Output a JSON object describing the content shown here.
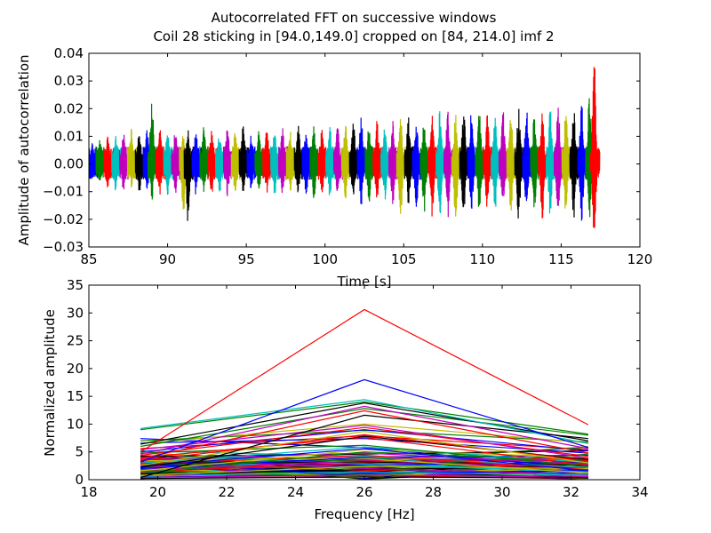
{
  "figure": {
    "title_line1": "Autocorrelated FFT on successive windows",
    "title_line2": "Coil 28 sticking in [94.0,149.0] cropped on [84, 214.0] imf 2"
  },
  "palette": [
    "#0000ff",
    "#008000",
    "#ff0000",
    "#00bfbf",
    "#bf00bf",
    "#bfbf00",
    "#000000"
  ],
  "chart_data": [
    {
      "type": "line",
      "title": "Autocorrelated FFT on successive windows",
      "subtitle": "Coil 28 sticking in [94.0,149.0] cropped on [84, 214.0] imf 2",
      "xlabel": "Time [s]",
      "ylabel": "Amplitude of autocorrelation",
      "xlim": [
        85,
        120
      ],
      "ylim": [
        -0.03,
        0.04
      ],
      "xticks": [
        85,
        90,
        95,
        100,
        105,
        110,
        115,
        120
      ],
      "yticks": [
        -0.03,
        -0.02,
        -0.01,
        0.0,
        0.01,
        0.02,
        0.03,
        0.04
      ],
      "xtick_labels": [
        "85",
        "90",
        "95",
        "100",
        "105",
        "110",
        "115",
        "120"
      ],
      "ytick_labels": [
        "−0.03",
        "−0.02",
        "−0.01",
        "0.00",
        "0.01",
        "0.02",
        "0.03",
        "0.04"
      ],
      "grid": false,
      "legend": "none",
      "windows": {
        "t_start": 85.0,
        "t_end": 117.2,
        "step": 0.5,
        "color_cycle": [
          "#0000ff",
          "#008000",
          "#ff0000",
          "#00bfbf",
          "#bf00bf",
          "#bfbf00",
          "#000000"
        ],
        "peaks": [
          [
            85.2,
            0.008,
            -0.006
          ],
          [
            85.7,
            0.009,
            -0.008
          ],
          [
            86.2,
            0.01,
            -0.009
          ],
          [
            86.7,
            0.011,
            -0.01
          ],
          [
            87.2,
            0.012,
            -0.01
          ],
          [
            87.7,
            0.013,
            -0.009
          ],
          [
            88.2,
            0.012,
            -0.011
          ],
          [
            88.7,
            0.013,
            -0.01
          ],
          [
            89.0,
            0.025,
            -0.015
          ],
          [
            89.5,
            0.014,
            -0.012
          ],
          [
            90.0,
            0.013,
            -0.012
          ],
          [
            90.5,
            0.014,
            -0.011
          ],
          [
            91.0,
            0.012,
            -0.019
          ],
          [
            91.3,
            0.013,
            -0.022
          ],
          [
            91.8,
            0.013,
            -0.012
          ],
          [
            92.3,
            0.014,
            -0.011
          ],
          [
            92.8,
            0.013,
            -0.012
          ],
          [
            93.3,
            0.012,
            -0.011
          ],
          [
            93.8,
            0.014,
            -0.012
          ],
          [
            94.3,
            0.013,
            -0.011
          ],
          [
            94.8,
            0.014,
            -0.012
          ],
          [
            95.3,
            0.013,
            -0.011
          ],
          [
            95.8,
            0.012,
            -0.01
          ],
          [
            96.3,
            0.013,
            -0.011
          ],
          [
            96.8,
            0.012,
            -0.012
          ],
          [
            97.3,
            0.013,
            -0.011
          ],
          [
            97.8,
            0.013,
            -0.012
          ],
          [
            98.3,
            0.014,
            -0.011
          ],
          [
            98.8,
            0.013,
            -0.012
          ],
          [
            99.3,
            0.014,
            -0.013
          ],
          [
            99.8,
            0.014,
            -0.012
          ],
          [
            100.3,
            0.015,
            -0.013
          ],
          [
            100.8,
            0.014,
            -0.012
          ],
          [
            101.3,
            0.015,
            -0.013
          ],
          [
            101.8,
            0.016,
            -0.014
          ],
          [
            102.3,
            0.018,
            -0.016
          ],
          [
            102.8,
            0.015,
            -0.014
          ],
          [
            103.3,
            0.016,
            -0.015
          ],
          [
            103.8,
            0.015,
            -0.014
          ],
          [
            104.3,
            0.016,
            -0.015
          ],
          [
            104.8,
            0.018,
            -0.021
          ],
          [
            105.3,
            0.017,
            -0.016
          ],
          [
            105.8,
            0.016,
            -0.017
          ],
          [
            106.3,
            0.017,
            -0.018
          ],
          [
            106.8,
            0.018,
            -0.02
          ],
          [
            107.3,
            0.021,
            -0.022
          ],
          [
            107.8,
            0.02,
            -0.021
          ],
          [
            108.3,
            0.019,
            -0.022
          ],
          [
            108.8,
            0.021,
            -0.02
          ],
          [
            109.3,
            0.02,
            -0.019
          ],
          [
            109.8,
            0.019,
            -0.018
          ],
          [
            110.3,
            0.018,
            -0.019
          ],
          [
            110.8,
            0.019,
            -0.018
          ],
          [
            111.3,
            0.02,
            -0.017
          ],
          [
            111.8,
            0.019,
            -0.018
          ],
          [
            112.3,
            0.021,
            -0.022
          ],
          [
            112.8,
            0.02,
            -0.019
          ],
          [
            113.3,
            0.019,
            -0.018
          ],
          [
            113.8,
            0.02,
            -0.02
          ],
          [
            114.3,
            0.021,
            -0.019
          ],
          [
            114.8,
            0.023,
            -0.022
          ],
          [
            115.3,
            0.02,
            -0.019
          ],
          [
            115.8,
            0.021,
            -0.02
          ],
          [
            116.3,
            0.022,
            -0.021
          ],
          [
            116.8,
            0.026,
            -0.022
          ],
          [
            117.1,
            0.037,
            -0.027
          ]
        ]
      }
    },
    {
      "type": "line",
      "title": "",
      "xlabel": "Frequency [Hz]",
      "ylabel": "Normalized amplitude",
      "xlim": [
        18,
        34
      ],
      "ylim": [
        0,
        35
      ],
      "xticks": [
        18,
        20,
        22,
        24,
        26,
        28,
        30,
        32,
        34
      ],
      "yticks": [
        0,
        5,
        10,
        15,
        20,
        25,
        30,
        35
      ],
      "xtick_labels": [
        "18",
        "20",
        "22",
        "24",
        "26",
        "28",
        "30",
        "32",
        "34"
      ],
      "ytick_labels": [
        "0",
        "5",
        "10",
        "15",
        "20",
        "25",
        "30",
        "35"
      ],
      "grid": false,
      "legend": "none",
      "x": [
        19.5,
        26.0,
        32.5
      ],
      "series": [
        {
          "color": "#ff0000",
          "values": [
            5.0,
            30.6,
            9.9
          ]
        },
        {
          "color": "#0000ff",
          "values": [
            3.2,
            18.0,
            5.8
          ]
        },
        {
          "color": "#00bfbf",
          "values": [
            9.2,
            14.4,
            6.5
          ]
        },
        {
          "color": "#008000",
          "values": [
            9.0,
            14.0,
            8.2
          ]
        },
        {
          "color": "#000000",
          "values": [
            6.4,
            13.8,
            7.0
          ]
        },
        {
          "color": "#bf00bf",
          "values": [
            4.6,
            13.2,
            5.6
          ]
        },
        {
          "color": "#008000",
          "values": [
            6.0,
            12.8,
            8.0
          ]
        },
        {
          "color": "#ff0000",
          "values": [
            3.8,
            12.4,
            4.8
          ]
        },
        {
          "color": "#000000",
          "values": [
            0.4,
            11.6,
            7.4
          ]
        },
        {
          "color": "#bfbf00",
          "values": [
            6.5,
            10.0,
            6.6
          ]
        },
        {
          "color": "#bf00bf",
          "values": [
            5.4,
            9.8,
            3.9
          ]
        },
        {
          "color": "#ff0000",
          "values": [
            4.4,
            9.4,
            4.2
          ]
        },
        {
          "color": "#0000ff",
          "values": [
            5.0,
            9.0,
            5.2
          ]
        },
        {
          "color": "#bfbf00",
          "values": [
            2.6,
            8.7,
            3.0
          ]
        },
        {
          "color": "#ff0000",
          "values": [
            3.4,
            8.1,
            3.4
          ]
        },
        {
          "color": "#000000",
          "values": [
            2.2,
            7.8,
            3.6
          ]
        },
        {
          "color": "#ff0000",
          "values": [
            4.0,
            7.6,
            2.6
          ]
        },
        {
          "color": "#0000ff",
          "values": [
            6.6,
            7.4,
            4.8
          ]
        },
        {
          "color": "#008000",
          "values": [
            4.8,
            6.2,
            2.4
          ]
        },
        {
          "color": "#00bfbf",
          "values": [
            3.0,
            5.9,
            3.1
          ]
        },
        {
          "color": "#0000ff",
          "values": [
            2.4,
            5.6,
            1.6
          ]
        },
        {
          "color": "#bfbf00",
          "values": [
            1.6,
            5.4,
            4.0
          ]
        },
        {
          "color": "#008000",
          "values": [
            1.2,
            5.0,
            3.3
          ]
        },
        {
          "color": "#bf00bf",
          "values": [
            3.6,
            4.8,
            2.8
          ]
        },
        {
          "color": "#000000",
          "values": [
            4.2,
            4.6,
            5.2
          ]
        },
        {
          "color": "#ff0000",
          "values": [
            2.8,
            4.4,
            1.8
          ]
        },
        {
          "color": "#00bfbf",
          "values": [
            5.2,
            4.2,
            2.2
          ]
        },
        {
          "color": "#0000ff",
          "values": [
            2.0,
            4.0,
            4.4
          ]
        },
        {
          "color": "#bfbf00",
          "values": [
            3.4,
            3.8,
            1.2
          ]
        },
        {
          "color": "#008000",
          "values": [
            2.6,
            3.6,
            5.8
          ]
        },
        {
          "color": "#bf00bf",
          "values": [
            1.8,
            3.4,
            2.2
          ]
        },
        {
          "color": "#000000",
          "values": [
            3.0,
            3.2,
            2.6
          ]
        },
        {
          "color": "#ff0000",
          "values": [
            1.4,
            3.0,
            3.8
          ]
        },
        {
          "color": "#00bfbf",
          "values": [
            4.4,
            2.8,
            1.4
          ]
        },
        {
          "color": "#0000ff",
          "values": [
            3.6,
            2.6,
            3.2
          ]
        },
        {
          "color": "#bfbf00",
          "values": [
            0.8,
            2.4,
            2.0
          ]
        },
        {
          "color": "#008000",
          "values": [
            2.2,
            2.2,
            4.6
          ]
        },
        {
          "color": "#bf00bf",
          "values": [
            4.0,
            2.0,
            1.0
          ]
        },
        {
          "color": "#000000",
          "values": [
            1.0,
            1.8,
            2.4
          ]
        },
        {
          "color": "#ff0000",
          "values": [
            3.2,
            1.6,
            3.0
          ]
        },
        {
          "color": "#00bfbf",
          "values": [
            0.6,
            1.4,
            0.8
          ]
        },
        {
          "color": "#0000ff",
          "values": [
            2.8,
            1.2,
            1.6
          ]
        },
        {
          "color": "#008000",
          "values": [
            1.6,
            1.0,
            2.8
          ]
        },
        {
          "color": "#bf00bf",
          "values": [
            0.4,
            0.8,
            0.6
          ]
        },
        {
          "color": "#bfbf00",
          "values": [
            4.8,
            3.1,
            6.0
          ]
        },
        {
          "color": "#ff0000",
          "values": [
            5.6,
            7.9,
            5.4
          ]
        },
        {
          "color": "#008000",
          "values": [
            7.0,
            8.9,
            6.8
          ]
        },
        {
          "color": "#0000ff",
          "values": [
            7.4,
            5.8,
            2.0
          ]
        },
        {
          "color": "#000000",
          "values": [
            0.2,
            0.5,
            0.3
          ]
        }
      ]
    }
  ]
}
